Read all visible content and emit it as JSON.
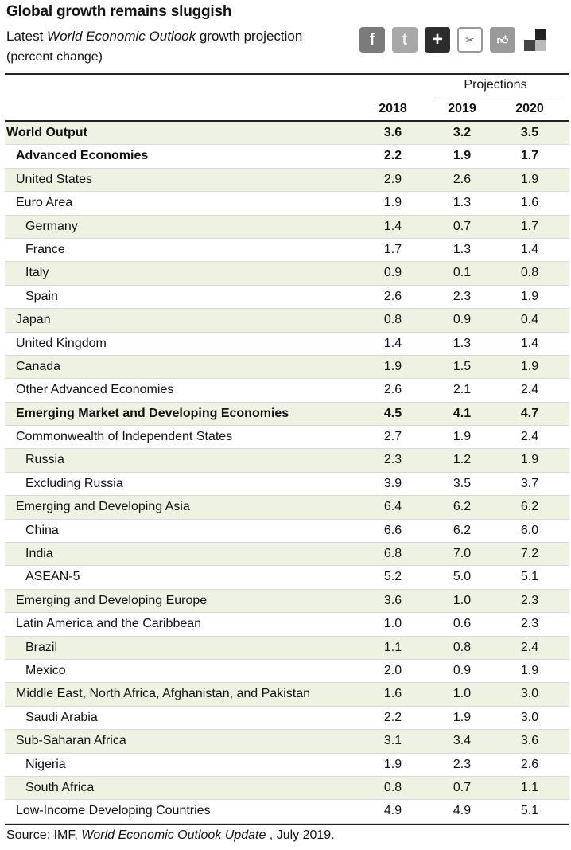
{
  "header": {
    "title": "Global growth remains sluggish",
    "subtitle_prefix": "Latest ",
    "subtitle_italic": "World Economic Outlook",
    "subtitle_suffix": " growth projection",
    "units": "(percent change)"
  },
  "share_icons": [
    "facebook-icon",
    "twitter-icon",
    "plus-icon",
    "digg-icon",
    "like-icon",
    "delicious-icon"
  ],
  "table": {
    "projections_label": "Projections",
    "columns": [
      "2018",
      "2019",
      "2020"
    ],
    "rows": [
      {
        "label": "World Output",
        "level": 0,
        "bold": true,
        "values": [
          "3.6",
          "3.2",
          "3.5"
        ]
      },
      {
        "label": "Advanced Economies",
        "level": 1,
        "bold": true,
        "values": [
          "2.2",
          "1.9",
          "1.7"
        ]
      },
      {
        "label": "United States",
        "level": 1,
        "bold": false,
        "values": [
          "2.9",
          "2.6",
          "1.9"
        ]
      },
      {
        "label": "Euro Area",
        "level": 1,
        "bold": false,
        "values": [
          "1.9",
          "1.3",
          "1.6"
        ]
      },
      {
        "label": "Germany",
        "level": 2,
        "bold": false,
        "values": [
          "1.4",
          "0.7",
          "1.7"
        ]
      },
      {
        "label": "France",
        "level": 2,
        "bold": false,
        "values": [
          "1.7",
          "1.3",
          "1.4"
        ]
      },
      {
        "label": "Italy",
        "level": 2,
        "bold": false,
        "values": [
          "0.9",
          "0.1",
          "0.8"
        ]
      },
      {
        "label": "Spain",
        "level": 2,
        "bold": false,
        "values": [
          "2.6",
          "2.3",
          "1.9"
        ]
      },
      {
        "label": "Japan",
        "level": 1,
        "bold": false,
        "values": [
          "0.8",
          "0.9",
          "0.4"
        ]
      },
      {
        "label": "United Kingdom",
        "level": 1,
        "bold": false,
        "values": [
          "1.4",
          "1.3",
          "1.4"
        ]
      },
      {
        "label": "Canada",
        "level": 1,
        "bold": false,
        "values": [
          "1.9",
          "1.5",
          "1.9"
        ]
      },
      {
        "label": "Other Advanced Economies",
        "level": 1,
        "bold": false,
        "values": [
          "2.6",
          "2.1",
          "2.4"
        ]
      },
      {
        "label": "Emerging Market and Developing Economies",
        "level": 1,
        "bold": true,
        "values": [
          "4.5",
          "4.1",
          "4.7"
        ]
      },
      {
        "label": "Commonwealth of Independent States",
        "level": 1,
        "bold": false,
        "values": [
          "2.7",
          "1.9",
          "2.4"
        ]
      },
      {
        "label": "Russia",
        "level": 2,
        "bold": false,
        "values": [
          "2.3",
          "1.2",
          "1.9"
        ]
      },
      {
        "label": "Excluding Russia",
        "level": 2,
        "bold": false,
        "values": [
          "3.9",
          "3.5",
          "3.7"
        ]
      },
      {
        "label": "Emerging and Developing Asia",
        "level": 1,
        "bold": false,
        "values": [
          "6.4",
          "6.2",
          "6.2"
        ]
      },
      {
        "label": "China",
        "level": 2,
        "bold": false,
        "values": [
          "6.6",
          "6.2",
          "6.0"
        ]
      },
      {
        "label": "India",
        "level": 2,
        "bold": false,
        "values": [
          "6.8",
          "7.0",
          "7.2"
        ]
      },
      {
        "label": "ASEAN-5",
        "level": 2,
        "bold": false,
        "values": [
          "5.2",
          "5.0",
          "5.1"
        ]
      },
      {
        "label": "Emerging and Developing Europe",
        "level": 1,
        "bold": false,
        "values": [
          "3.6",
          "1.0",
          "2.3"
        ]
      },
      {
        "label": "Latin America and the Caribbean",
        "level": 1,
        "bold": false,
        "values": [
          "1.0",
          "0.6",
          "2.3"
        ]
      },
      {
        "label": "Brazil",
        "level": 2,
        "bold": false,
        "values": [
          "1.1",
          "0.8",
          "2.4"
        ]
      },
      {
        "label": "Mexico",
        "level": 2,
        "bold": false,
        "values": [
          "2.0",
          "0.9",
          "1.9"
        ]
      },
      {
        "label": "Middle East, North Africa, Afghanistan, and Pakistan",
        "level": 1,
        "bold": false,
        "values": [
          "1.6",
          "1.0",
          "3.0"
        ]
      },
      {
        "label": "Saudi Arabia",
        "level": 2,
        "bold": false,
        "values": [
          "2.2",
          "1.9",
          "3.0"
        ]
      },
      {
        "label": "Sub-Saharan Africa",
        "level": 1,
        "bold": false,
        "values": [
          "3.1",
          "3.4",
          "3.6"
        ]
      },
      {
        "label": "Nigeria",
        "level": 2,
        "bold": false,
        "values": [
          "1.9",
          "2.3",
          "2.6"
        ]
      },
      {
        "label": "South Africa",
        "level": 2,
        "bold": false,
        "values": [
          "0.8",
          "0.7",
          "1.1"
        ]
      },
      {
        "label": "Low-Income Developing Countries",
        "level": 1,
        "bold": false,
        "values": [
          "4.9",
          "4.9",
          "5.1"
        ]
      }
    ]
  },
  "source": {
    "prefix": "Source: IMF, ",
    "italic": "World Economic Outlook Update",
    "suffix": " , July 2019."
  }
}
